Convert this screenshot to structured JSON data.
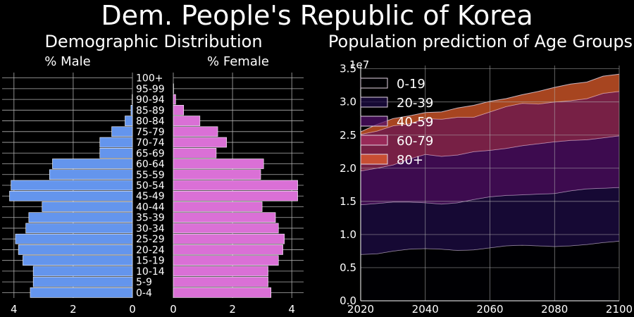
{
  "page": {
    "title": "Dem. People's Republic of Korea",
    "colors": {
      "background": "#000000",
      "grid": "#b0b0b0",
      "male": "#6495ed",
      "female": "#da70d6"
    }
  },
  "chart_data": [
    {
      "type": "bar",
      "orientation": "horizontal-population-pyramid",
      "title": "Demographic Distribution",
      "categories": [
        "0-4",
        "5-9",
        "10-14",
        "15-19",
        "20-24",
        "25-29",
        "30-34",
        "35-39",
        "40-44",
        "45-49",
        "50-54",
        "55-59",
        "60-64",
        "65-69",
        "70-74",
        "75-79",
        "80-84",
        "85-89",
        "90-94",
        "95-99",
        "100+"
      ],
      "series": [
        {
          "name": "% Male",
          "color": "#6495ed",
          "values": [
            3.45,
            3.35,
            3.35,
            3.7,
            3.85,
            3.95,
            3.6,
            3.5,
            3.05,
            4.15,
            4.1,
            2.8,
            2.7,
            1.1,
            1.1,
            0.7,
            0.25,
            0.05,
            0.01,
            0.0,
            0.0
          ]
        },
        {
          "name": "% Female",
          "color": "#da70d6",
          "values": [
            3.3,
            3.2,
            3.2,
            3.55,
            3.7,
            3.75,
            3.55,
            3.45,
            3.0,
            4.2,
            4.2,
            2.95,
            3.05,
            1.45,
            1.8,
            1.5,
            0.9,
            0.35,
            0.08,
            0.01,
            0.0
          ]
        }
      ],
      "male_xticks": [
        4,
        2,
        0
      ],
      "female_xticks": [
        0,
        2,
        4
      ],
      "xlim": [
        0,
        4.4
      ],
      "grid": true
    },
    {
      "type": "area",
      "stacked": true,
      "title": "Population prediction of Age Groups",
      "x": [
        2020,
        2025,
        2030,
        2035,
        2040,
        2045,
        2050,
        2055,
        2060,
        2065,
        2070,
        2075,
        2080,
        2085,
        2090,
        2095,
        2100
      ],
      "series": [
        {
          "name": "0-19",
          "color": "#000004",
          "values": [
            7000000,
            7100000,
            7500000,
            7800000,
            7900000,
            7800000,
            7600000,
            7700000,
            8000000,
            8300000,
            8400000,
            8300000,
            8200000,
            8300000,
            8500000,
            8800000,
            9000000
          ]
        },
        {
          "name": "20-39",
          "color": "#1f0c48",
          "values": [
            7500000,
            7600000,
            7400000,
            7100000,
            6900000,
            6800000,
            7200000,
            7600000,
            7700000,
            7600000,
            7600000,
            7800000,
            8000000,
            8300000,
            8400000,
            8200000,
            8100000
          ]
        },
        {
          "name": "40-59",
          "color": "#550f6d",
          "values": [
            5100000,
            5300000,
            5600000,
            6500000,
            7300000,
            7200000,
            7200000,
            7200000,
            7000000,
            7100000,
            7400000,
            7600000,
            7800000,
            7600000,
            7400000,
            7600000,
            7800000
          ]
        },
        {
          "name": "60-79",
          "color": "#a52c60",
          "values": [
            5500000,
            5600000,
            5900000,
            5300000,
            5400000,
            5600000,
            5700000,
            5200000,
            5800000,
            6300000,
            6400000,
            6000000,
            6000000,
            6000000,
            6200000,
            6700000,
            6700000
          ]
        },
        {
          "name": "80+",
          "color": "#e8602c",
          "values": [
            400000,
            1000000,
            1100000,
            1200000,
            900000,
            1100000,
            1400000,
            1800000,
            1600000,
            1200000,
            1300000,
            1900000,
            2200000,
            2500000,
            2500000,
            2600000,
            2600000
          ]
        }
      ],
      "xticks": [
        2020,
        2040,
        2060,
        2080,
        2100
      ],
      "yticks": [
        "0.0",
        "0.5",
        "1.0",
        "1.5",
        "2.0",
        "2.5",
        "3.0",
        "3.5"
      ],
      "y_multiplier": "1e7",
      "xlim": [
        2020,
        2100
      ],
      "ylim": [
        0,
        35500000
      ],
      "legend": "upper-left",
      "grid": true
    }
  ]
}
